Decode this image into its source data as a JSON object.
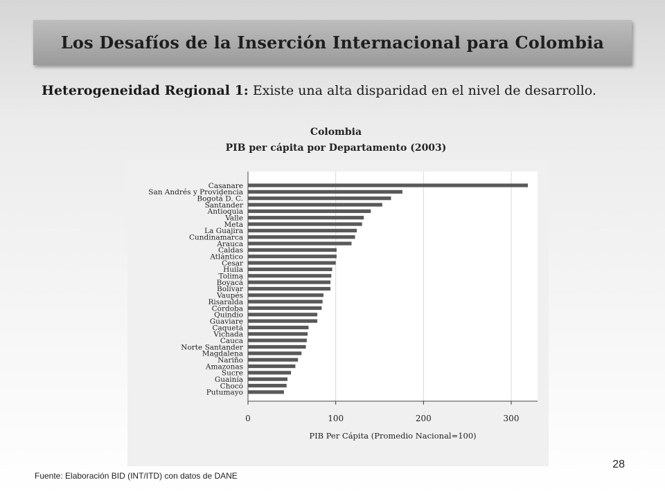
{
  "slide": {
    "title": "Los Desafíos de la Inserción Internacional para Colombia",
    "intro_bold": "Heterogeneidad Regional 1:",
    "intro_text": " Existe una alta disparidad en el nivel de desarrollo.",
    "footer": "Fuente: Elaboración BID (INT/ITD)  con datos de DANE",
    "page_number": "28"
  },
  "chart_data": {
    "type": "bar",
    "orientation": "horizontal",
    "title": "Colombia",
    "subtitle": "PIB per cápita por Departamento (2003)",
    "xlabel": "PIB Per Cápita (Promedio Nacional=100)",
    "ylabel": "",
    "xlim": [
      0,
      330
    ],
    "xticks": [
      0,
      100,
      200,
      300
    ],
    "grid": "vertical",
    "bar_color": "#595959",
    "categories": [
      "Casanare",
      "San Andrés y Providencia",
      "Bogotá D. C.",
      "Santander",
      "Antioquia",
      "Valle",
      "Meta",
      "La Guajira",
      "Cundinamarca",
      "Arauca",
      "Caldas",
      "Atlántico",
      "Cesar",
      "Huila",
      "Tolima",
      "Boyacá",
      "Bolívar",
      "Vaupés",
      "Risaralda",
      "Córdoba",
      "Quindío",
      "Guaviare",
      "Caquetá",
      "Vichada",
      "Cauca",
      "Norte Santander",
      "Magdalena",
      "Nariño",
      "Amazonas",
      "Sucre",
      "Guainía",
      "Chocó",
      "Putumayo"
    ],
    "values": [
      319,
      176,
      163,
      153,
      140,
      132,
      130,
      124,
      122,
      118,
      101,
      101,
      100,
      96,
      95,
      94,
      94,
      86,
      85,
      84,
      79,
      79,
      69,
      68,
      67,
      66,
      61,
      57,
      54,
      49,
      45,
      44,
      41
    ]
  }
}
